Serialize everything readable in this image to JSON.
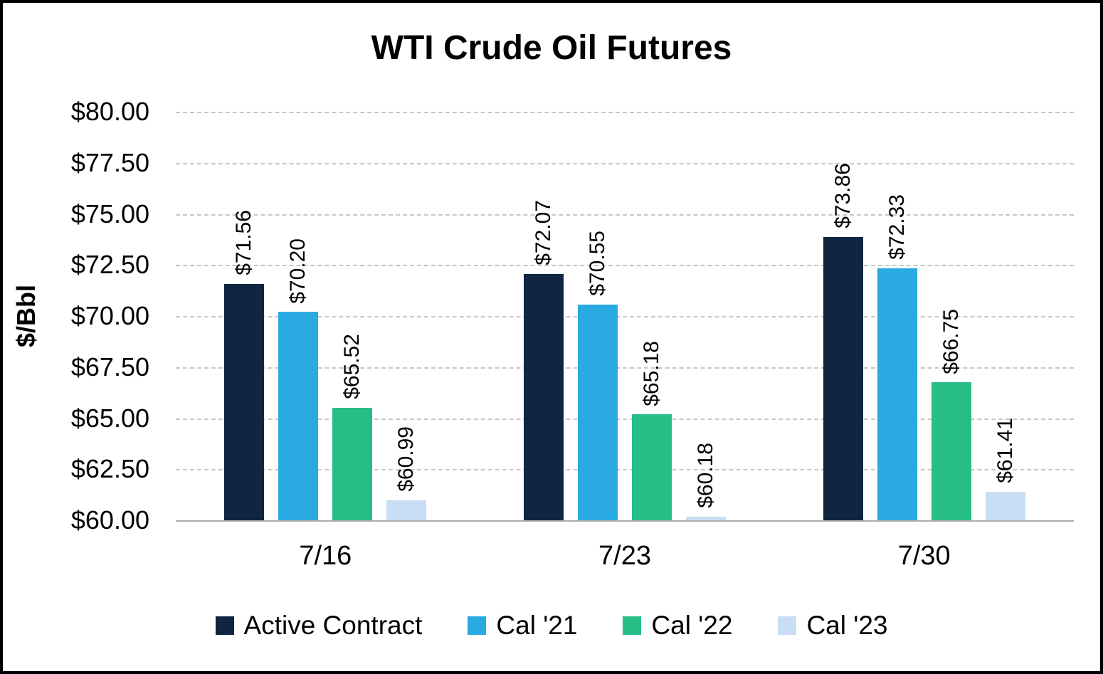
{
  "chart_data": {
    "type": "bar",
    "title": "WTI Crude Oil Futures",
    "ylabel": "$/Bbl",
    "ylim": [
      60,
      80
    ],
    "grid": "dashed horizontal",
    "legend_position": "bottom",
    "categories": [
      "7/16",
      "7/23",
      "7/30"
    ],
    "series": [
      {
        "name": "Active Contract",
        "color": "#102542",
        "values": [
          71.56,
          72.07,
          73.86
        ],
        "labels": [
          "$71.56",
          "$72.07",
          "$73.86"
        ]
      },
      {
        "name": "Cal '21",
        "color": "#29ABE2",
        "values": [
          70.2,
          70.55,
          72.33
        ],
        "labels": [
          "$70.20",
          "$70.55",
          "$72.33"
        ]
      },
      {
        "name": "Cal '22",
        "color": "#26BD87",
        "values": [
          65.52,
          65.18,
          66.75
        ],
        "labels": [
          "$65.52",
          "$65.18",
          "$66.75"
        ]
      },
      {
        "name": "Cal '23",
        "color": "#C9DDF4",
        "values": [
          60.99,
          60.18,
          61.41
        ],
        "labels": [
          "$60.99",
          "$60.18",
          "$61.41"
        ]
      }
    ],
    "yticks": [
      {
        "value": 80.0,
        "label": "$80.00"
      },
      {
        "value": 77.5,
        "label": "$77.50"
      },
      {
        "value": 75.0,
        "label": "$75.00"
      },
      {
        "value": 72.5,
        "label": "$72.50"
      },
      {
        "value": 70.0,
        "label": "$70.00"
      },
      {
        "value": 67.5,
        "label": "$67.50"
      },
      {
        "value": 65.0,
        "label": "$65.00"
      },
      {
        "value": 62.5,
        "label": "$62.50"
      },
      {
        "value": 60.0,
        "label": "$60.00"
      }
    ]
  }
}
